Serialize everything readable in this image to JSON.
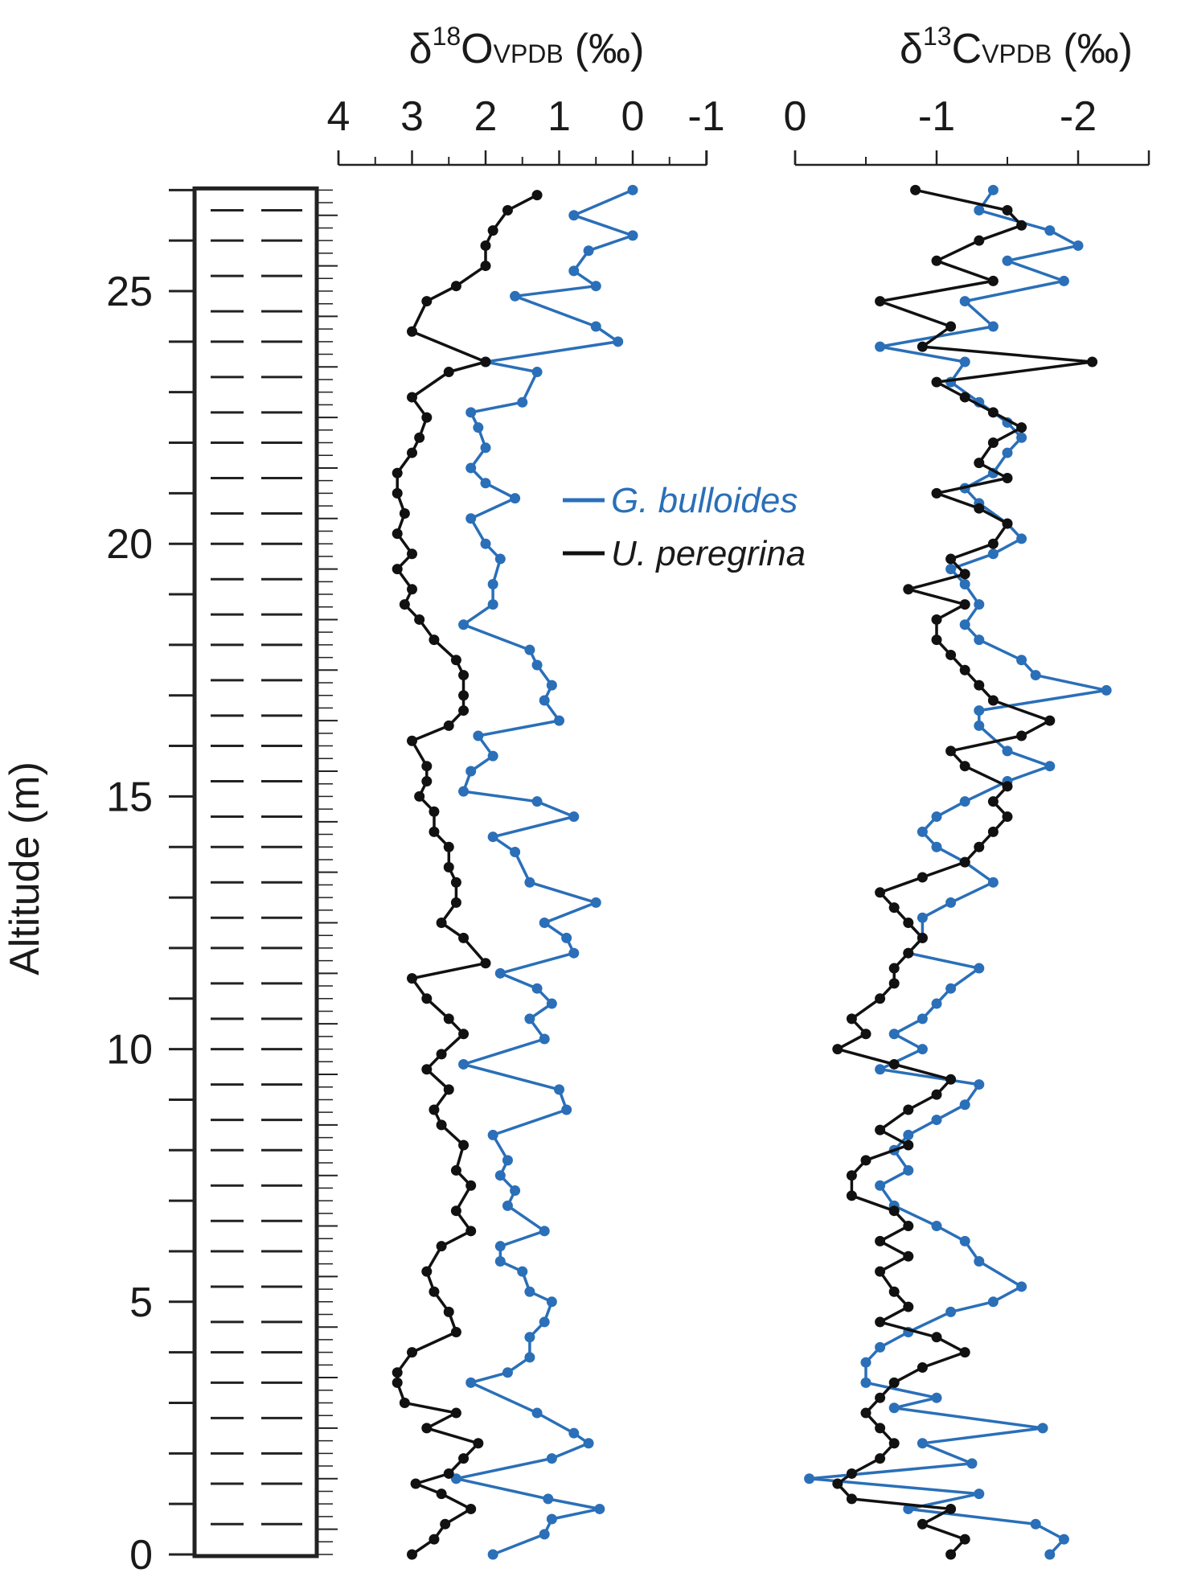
{
  "colors": {
    "blue": "#2a6fb8",
    "black": "#111111",
    "axis": "#222222"
  },
  "labels": {
    "ylabel": "Altitude (m)",
    "o18_delta": "δ",
    "o18_sup": "18",
    "o18_el": "O",
    "o18_sub": "VPDB",
    "o18_unit": "(‰)",
    "c13_delta": "δ",
    "c13_sup": "13",
    "c13_el": "C",
    "c13_sub": "VPDB",
    "c13_unit": "(‰)"
  },
  "chart_data": [
    {
      "type": "line",
      "panel": "lithology-altitude",
      "ylabel": "Altitude (m)",
      "ylim": [
        0,
        27
      ],
      "yticks": [
        0,
        5,
        10,
        15,
        20,
        25
      ],
      "lithology_dash_altitudes": [
        0.6,
        1.4,
        2.0,
        2.7,
        3.4,
        4.0,
        4.6,
        5.3,
        6.0,
        6.6,
        7.3,
        8.0,
        8.6,
        9.3,
        10.0,
        10.6,
        11.3,
        12.0,
        12.6,
        13.3,
        14.0,
        14.6,
        15.3,
        16.0,
        16.6,
        17.3,
        18.0,
        18.6,
        19.3,
        20.0,
        20.6,
        21.3,
        22.0,
        22.6,
        23.3,
        24.0,
        24.6,
        25.3,
        26.0,
        26.6
      ]
    },
    {
      "type": "line",
      "panel": "d18O",
      "xlim": [
        4,
        -1
      ],
      "xticks": [
        "4",
        "3",
        "2",
        "1",
        "0",
        "-1"
      ],
      "xtick_values": [
        4,
        3,
        2,
        1,
        0,
        -1
      ],
      "legend_position": "right",
      "series": [
        {
          "name": "G. bulloides",
          "color": "#2a6fb8",
          "y": [
            0.0,
            0.4,
            0.7,
            0.9,
            1.1,
            1.5,
            1.9,
            2.2,
            2.4,
            2.8,
            3.4,
            3.6,
            3.9,
            4.3,
            4.6,
            5.0,
            5.2,
            5.6,
            5.8,
            6.1,
            6.4,
            6.9,
            7.2,
            7.5,
            7.8,
            8.3,
            8.8,
            9.2,
            9.7,
            10.2,
            10.6,
            10.9,
            11.2,
            11.5,
            11.9,
            12.2,
            12.5,
            12.9,
            13.3,
            13.9,
            14.2,
            14.6,
            14.9,
            15.1,
            15.5,
            15.8,
            16.2,
            16.5,
            16.9,
            17.2,
            17.6,
            17.9,
            18.4,
            18.8,
            19.2,
            19.7,
            20.0,
            20.5,
            20.9,
            21.2,
            21.5,
            21.9,
            22.3,
            22.6,
            22.8,
            23.4,
            23.6,
            24.0,
            24.3,
            24.9,
            25.1,
            25.4,
            25.8,
            26.1,
            26.5,
            27.0
          ]
        },
        {
          "name": "U. peregrina",
          "color": "#111111",
          "y": [
            0.0,
            0.3,
            0.6,
            0.9,
            1.2,
            1.4,
            1.6,
            1.9,
            2.2,
            2.5,
            2.8,
            3.0,
            3.4,
            3.6,
            4.0,
            4.4,
            4.8,
            5.2,
            5.6,
            6.1,
            6.4,
            6.8,
            7.3,
            7.6,
            8.1,
            8.5,
            8.8,
            9.2,
            9.6,
            9.9,
            10.3,
            10.6,
            11.0,
            11.4,
            11.7,
            12.2,
            12.5,
            12.9,
            13.3,
            13.6,
            14.0,
            14.3,
            14.7,
            15.0,
            15.3,
            15.6,
            16.1,
            16.4,
            16.7,
            17.0,
            17.4,
            17.7,
            18.1,
            18.5,
            18.8,
            19.1,
            19.5,
            19.8,
            20.2,
            20.6,
            21.0,
            21.4,
            21.8,
            22.1,
            22.5,
            22.9,
            23.4,
            23.6,
            24.2,
            24.8,
            25.1,
            25.5,
            25.9,
            26.2,
            26.6,
            26.9
          ]
        }
      ],
      "x_by_series": {
        "G. bulloides": [
          1.9,
          1.2,
          1.1,
          0.45,
          1.15,
          2.4,
          1.1,
          0.6,
          0.8,
          1.3,
          2.2,
          1.7,
          1.4,
          1.4,
          1.2,
          1.1,
          1.4,
          1.5,
          1.8,
          1.8,
          1.2,
          1.7,
          1.6,
          1.8,
          1.7,
          1.9,
          0.9,
          1.0,
          2.3,
          1.2,
          1.4,
          1.1,
          1.3,
          1.8,
          0.8,
          0.9,
          1.2,
          0.5,
          1.4,
          1.6,
          1.9,
          0.8,
          1.3,
          2.3,
          2.2,
          1.9,
          2.1,
          1.0,
          1.2,
          1.1,
          1.3,
          1.4,
          2.3,
          1.9,
          1.9,
          1.8,
          2.0,
          2.2,
          1.6,
          2.0,
          2.2,
          2.0,
          2.1,
          2.2,
          1.5,
          1.3,
          2.0,
          0.2,
          0.5,
          1.6,
          0.5,
          0.8,
          0.6,
          0.0,
          0.8,
          0.0
        ]
      },
      "x": null,
      "x_black": [
        3.0,
        2.7,
        2.55,
        2.2,
        2.6,
        2.95,
        2.5,
        2.3,
        2.1,
        2.8,
        2.4,
        3.1,
        3.2,
        3.2,
        3.0,
        2.4,
        2.5,
        2.7,
        2.8,
        2.6,
        2.2,
        2.4,
        2.2,
        2.4,
        2.3,
        2.6,
        2.7,
        2.5,
        2.8,
        2.6,
        2.3,
        2.5,
        2.8,
        3.0,
        2.0,
        2.3,
        2.6,
        2.4,
        2.4,
        2.5,
        2.5,
        2.7,
        2.7,
        2.9,
        2.8,
        2.8,
        3.0,
        2.5,
        2.3,
        2.3,
        2.3,
        2.4,
        2.7,
        2.9,
        3.1,
        3.0,
        3.2,
        3.0,
        3.2,
        3.1,
        3.2,
        3.2,
        3.0,
        2.9,
        2.8,
        3.0,
        2.5,
        2.0,
        3.0,
        2.8,
        2.4,
        2.0,
        2.0,
        1.9,
        1.7,
        1.3
      ]
    },
    {
      "type": "line",
      "panel": "d13C",
      "xlim": [
        0,
        -2.5
      ],
      "xticks": [
        "0",
        "-1",
        "-2"
      ],
      "xtick_values": [
        0,
        -1,
        -2
      ],
      "series": [
        {
          "name": "G. bulloides",
          "color": "#2a6fb8",
          "y": [
            0.0,
            0.3,
            0.6,
            0.9,
            1.2,
            1.5,
            1.8,
            2.2,
            2.5,
            2.9,
            3.1,
            3.4,
            3.8,
            4.1,
            4.4,
            4.8,
            5.0,
            5.3,
            5.8,
            6.2,
            6.5,
            6.9,
            7.3,
            7.6,
            8.0,
            8.3,
            8.6,
            8.9,
            9.3,
            9.6,
            10.0,
            10.3,
            10.6,
            10.9,
            11.2,
            11.6,
            11.9,
            12.2,
            12.6,
            12.9,
            13.3,
            13.7,
            14.0,
            14.3,
            14.6,
            14.9,
            15.3,
            15.6,
            15.9,
            16.4,
            16.7,
            17.1,
            17.4,
            17.7,
            18.1,
            18.4,
            18.8,
            19.2,
            19.5,
            19.8,
            20.1,
            20.4,
            20.8,
            21.1,
            21.4,
            21.8,
            22.1,
            22.4,
            22.8,
            23.2,
            23.6,
            23.9,
            24.3,
            24.8,
            25.2,
            25.6,
            25.9,
            26.2,
            26.6,
            27.0
          ]
        },
        {
          "name": "U. peregrina",
          "color": "#111111",
          "y": [
            0.0,
            0.3,
            0.6,
            0.9,
            1.1,
            1.4,
            1.6,
            1.9,
            2.2,
            2.5,
            2.8,
            3.1,
            3.4,
            3.7,
            4.0,
            4.3,
            4.6,
            4.9,
            5.2,
            5.6,
            5.9,
            6.2,
            6.5,
            6.8,
            7.1,
            7.5,
            7.8,
            8.1,
            8.4,
            8.8,
            9.1,
            9.4,
            9.7,
            10.0,
            10.3,
            10.6,
            11.0,
            11.3,
            11.6,
            11.9,
            12.2,
            12.5,
            12.8,
            13.1,
            13.4,
            13.7,
            14.0,
            14.3,
            14.6,
            14.9,
            15.2,
            15.6,
            15.9,
            16.2,
            16.5,
            16.9,
            17.2,
            17.5,
            17.8,
            18.1,
            18.5,
            18.8,
            19.1,
            19.4,
            19.7,
            20.0,
            20.4,
            20.7,
            21.0,
            21.3,
            21.6,
            22.0,
            22.3,
            22.6,
            22.9,
            23.2,
            23.6,
            23.9,
            24.3,
            24.8,
            25.2,
            25.6,
            26.0,
            26.3,
            26.6,
            27.0
          ]
        }
      ]
    }
  ]
}
